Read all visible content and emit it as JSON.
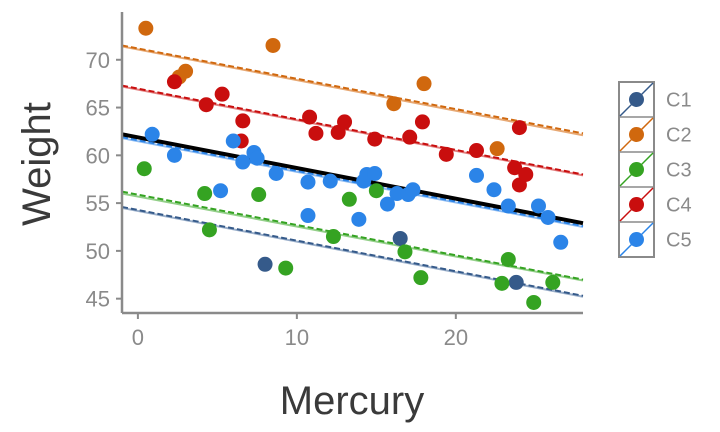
{
  "chart_data": {
    "type": "scatter",
    "title": "",
    "xlabel": "Mercury",
    "ylabel": "Weight",
    "xlim": [
      -1,
      28
    ],
    "ylim": [
      43.5,
      75
    ],
    "xticks": [
      0,
      10,
      20
    ],
    "yticks": [
      45,
      50,
      55,
      60,
      65,
      70
    ],
    "grid": false,
    "legend_position": "right",
    "overall_fit": {
      "x0": -1,
      "y0": 62.2,
      "x1": 28,
      "y1": 52.9,
      "color": "#000000"
    },
    "series": [
      {
        "name": "C1",
        "color": "#355a8a",
        "fit_color": "#9aafca",
        "points": [
          [
            8.0,
            48.6
          ],
          [
            16.5,
            51.3
          ],
          [
            23.8,
            46.7
          ]
        ],
        "fit": {
          "x0": -1,
          "y0": 54.5,
          "x1": 28,
          "y1": 45.2
        },
        "fit_dashed": {
          "x0": -1,
          "y0": 54.6,
          "x1": 28,
          "y1": 45.3
        }
      },
      {
        "name": "C2",
        "color": "#d0680e",
        "fit_color": "#e7a873",
        "points": [
          [
            0.5,
            73.3
          ],
          [
            2.6,
            68.2
          ],
          [
            3.0,
            68.8
          ],
          [
            8.5,
            71.5
          ],
          [
            16.1,
            65.4
          ],
          [
            18.0,
            67.5
          ],
          [
            22.6,
            60.7
          ]
        ],
        "fit": {
          "x0": -1,
          "y0": 71.4,
          "x1": 28,
          "y1": 62.1
        },
        "fit_dashed": {
          "x0": -1,
          "y0": 71.5,
          "x1": 28,
          "y1": 62.3
        }
      },
      {
        "name": "C3",
        "color": "#35a322",
        "fit_color": "#93cf89",
        "points": [
          [
            0.4,
            58.6
          ],
          [
            4.2,
            56.0
          ],
          [
            4.5,
            52.2
          ],
          [
            7.6,
            55.9
          ],
          [
            9.3,
            48.2
          ],
          [
            12.3,
            51.5
          ],
          [
            13.3,
            55.4
          ],
          [
            15.0,
            56.3
          ],
          [
            16.8,
            49.9
          ],
          [
            17.8,
            47.2
          ],
          [
            22.9,
            46.6
          ],
          [
            23.3,
            49.1
          ],
          [
            24.9,
            44.6
          ],
          [
            26.1,
            46.7
          ]
        ],
        "fit": {
          "x0": -1,
          "y0": 56.0,
          "x1": 28,
          "y1": 46.9
        },
        "fit_dashed": {
          "x0": -1,
          "y0": 56.2,
          "x1": 28,
          "y1": 47.0
        }
      },
      {
        "name": "C4",
        "color": "#c90e0e",
        "fit_color": "#e38080",
        "points": [
          [
            2.3,
            67.7
          ],
          [
            4.3,
            65.3
          ],
          [
            5.3,
            66.4
          ],
          [
            6.5,
            61.5
          ],
          [
            6.6,
            63.6
          ],
          [
            10.8,
            64.0
          ],
          [
            11.2,
            62.3
          ],
          [
            12.6,
            62.4
          ],
          [
            13.0,
            63.5
          ],
          [
            14.9,
            61.7
          ],
          [
            17.1,
            61.9
          ],
          [
            17.9,
            63.5
          ],
          [
            19.4,
            60.1
          ],
          [
            21.3,
            60.5
          ],
          [
            23.7,
            58.7
          ],
          [
            24.0,
            62.9
          ],
          [
            24.0,
            56.9
          ],
          [
            24.4,
            58.0
          ]
        ],
        "fit": {
          "x0": -1,
          "y0": 67.2,
          "x1": 28,
          "y1": 57.9
        },
        "fit_dashed": {
          "x0": -1,
          "y0": 67.3,
          "x1": 28,
          "y1": 58.0
        }
      },
      {
        "name": "C5",
        "color": "#2b84e8",
        "fit_color": "#8ebcf2",
        "points": [
          [
            0.9,
            62.2
          ],
          [
            2.3,
            60.0
          ],
          [
            5.2,
            56.3
          ],
          [
            6.0,
            61.5
          ],
          [
            6.6,
            59.3
          ],
          [
            7.3,
            60.3
          ],
          [
            7.5,
            59.7
          ],
          [
            8.7,
            58.1
          ],
          [
            10.7,
            53.7
          ],
          [
            10.7,
            57.2
          ],
          [
            12.1,
            57.3
          ],
          [
            13.9,
            53.3
          ],
          [
            14.2,
            57.3
          ],
          [
            14.4,
            58.0
          ],
          [
            14.9,
            58.1
          ],
          [
            15.7,
            54.9
          ],
          [
            16.3,
            56.0
          ],
          [
            17.0,
            55.9
          ],
          [
            17.3,
            56.4
          ],
          [
            21.3,
            57.9
          ],
          [
            22.4,
            56.4
          ],
          [
            23.3,
            54.7
          ],
          [
            25.2,
            54.7
          ],
          [
            25.8,
            53.5
          ],
          [
            26.6,
            50.9
          ]
        ],
        "fit": {
          "x0": -1,
          "y0": 61.8,
          "x1": 28,
          "y1": 52.5
        },
        "fit_dashed": {
          "x0": -1,
          "y0": 61.9,
          "x1": 28,
          "y1": 52.6
        }
      }
    ]
  }
}
